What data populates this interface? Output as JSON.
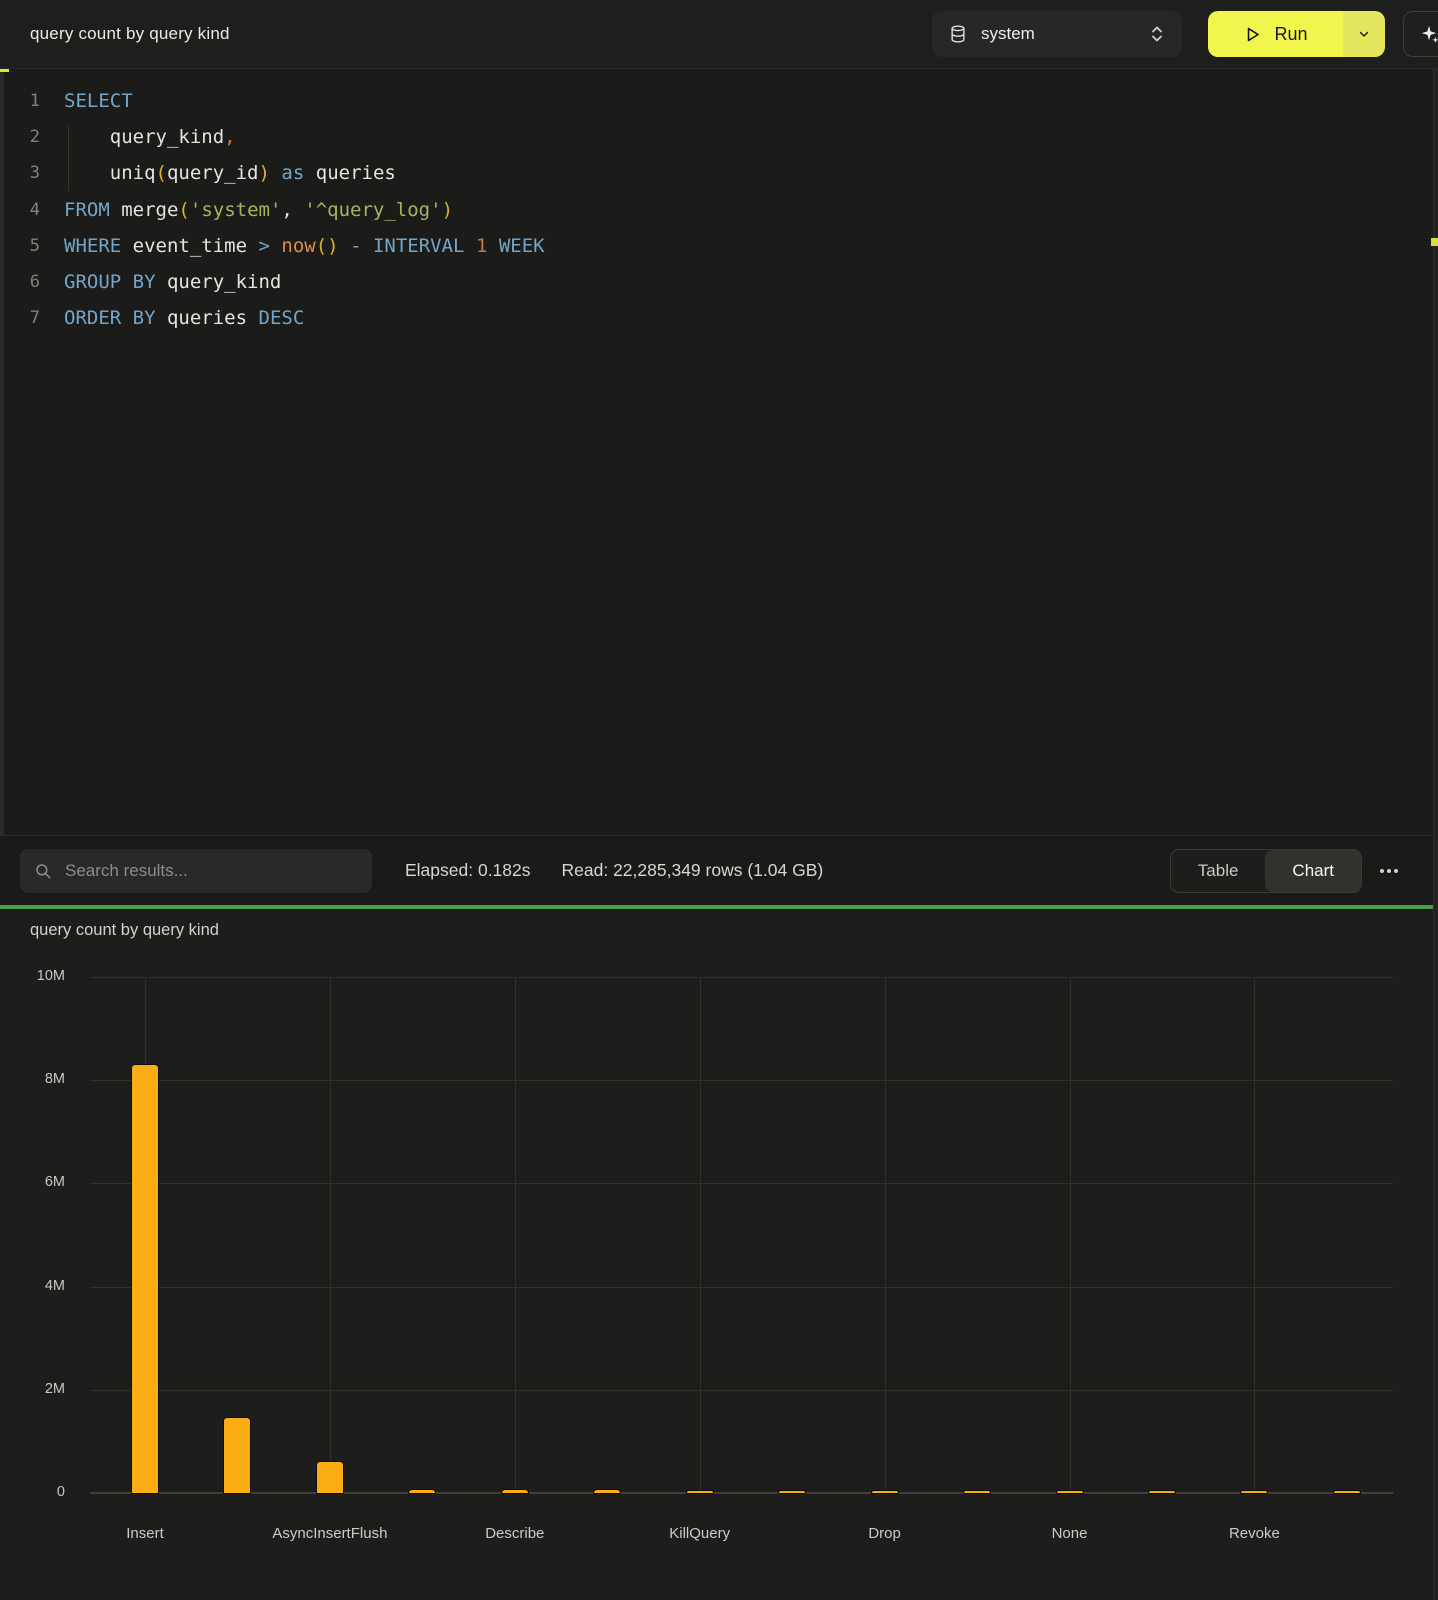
{
  "topbar": {
    "title": "query count by query kind",
    "database_selector": {
      "value": "system"
    },
    "run_button": {
      "label": "Run"
    }
  },
  "icons": {
    "database-icon": "db-cylinder",
    "unfold-icon": "chevron-up-down",
    "play-icon": "triangle-right-outline",
    "chevron-down-icon": "chevron-down",
    "sparkle-icon": "four-point-star",
    "search-icon": "magnifier",
    "ellipsis-icon": "three-dots"
  },
  "editor": {
    "lines": [
      {
        "num": 1,
        "tokens": [
          {
            "t": "SELECT",
            "c": "kw"
          }
        ]
      },
      {
        "num": 2,
        "tokens": [
          {
            "t": "    "
          },
          {
            "t": "query_kind",
            "c": "id"
          },
          {
            "t": ",",
            "c": "num"
          }
        ]
      },
      {
        "num": 3,
        "tokens": [
          {
            "t": "    "
          },
          {
            "t": "uniq",
            "c": "id"
          },
          {
            "t": "(",
            "c": "paren"
          },
          {
            "t": "query_id",
            "c": "id"
          },
          {
            "t": ")",
            "c": "paren"
          },
          {
            "t": " "
          },
          {
            "t": "as",
            "c": "kw"
          },
          {
            "t": " "
          },
          {
            "t": "queries",
            "c": "id"
          }
        ]
      },
      {
        "num": 4,
        "tokens": [
          {
            "t": "FROM",
            "c": "kw"
          },
          {
            "t": " "
          },
          {
            "t": "merge",
            "c": "id"
          },
          {
            "t": "(",
            "c": "paren"
          },
          {
            "t": "'system'",
            "c": "str"
          },
          {
            "t": ", ",
            "c": "id"
          },
          {
            "t": "'^query_log'",
            "c": "str"
          },
          {
            "t": ")",
            "c": "paren"
          }
        ]
      },
      {
        "num": 5,
        "tokens": [
          {
            "t": "WHERE",
            "c": "kw"
          },
          {
            "t": " "
          },
          {
            "t": "event_time",
            "c": "id"
          },
          {
            "t": " "
          },
          {
            "t": ">",
            "c": "kw"
          },
          {
            "t": " "
          },
          {
            "t": "now",
            "c": "fn"
          },
          {
            "t": "()",
            "c": "paren"
          },
          {
            "t": " "
          },
          {
            "t": "-",
            "c": "kw"
          },
          {
            "t": " "
          },
          {
            "t": "INTERVAL",
            "c": "kw"
          },
          {
            "t": " "
          },
          {
            "t": "1",
            "c": "num"
          },
          {
            "t": " "
          },
          {
            "t": "WEEK",
            "c": "kw"
          }
        ]
      },
      {
        "num": 6,
        "tokens": [
          {
            "t": "GROUP BY",
            "c": "kw"
          },
          {
            "t": " "
          },
          {
            "t": "query_kind",
            "c": "id"
          }
        ]
      },
      {
        "num": 7,
        "tokens": [
          {
            "t": "ORDER BY",
            "c": "kw"
          },
          {
            "t": " "
          },
          {
            "t": "queries",
            "c": "id"
          },
          {
            "t": " "
          },
          {
            "t": "DESC",
            "c": "kw"
          }
        ]
      }
    ]
  },
  "results_toolbar": {
    "search_placeholder": "Search results...",
    "elapsed": "Elapsed: 0.182s",
    "read": "Read: 22,285,349 rows (1.04 GB)",
    "view_toggle": {
      "options": [
        "Table",
        "Chart"
      ],
      "selected": "Chart"
    }
  },
  "chart_data": {
    "type": "bar",
    "title": "query count by query kind",
    "categories": [
      "Insert",
      "",
      "AsyncInsertFlush",
      "",
      "Describe",
      "",
      "KillQuery",
      "",
      "Drop",
      "",
      "None",
      "",
      "Revoke",
      ""
    ],
    "values": [
      8300000,
      1450000,
      600000,
      60000,
      55000,
      50000,
      48000,
      45000,
      42000,
      40000,
      38000,
      35000,
      32000,
      30000
    ],
    "xlabel": "",
    "ylabel": "",
    "ylim": [
      0,
      10000000
    ],
    "ytick_labels": [
      "0",
      "2M",
      "4M",
      "6M",
      "8M",
      "10M"
    ],
    "x_label_interval": 2,
    "bar_color": "#fcac14",
    "grid": true,
    "legend_position": "none"
  },
  "colors": {
    "accent_run": "#f2f64c",
    "splitter_green": "#4a9e4b",
    "bar": "#fcac14",
    "syntax": {
      "kw": "#74a6c8",
      "id": "#e6e4e0",
      "paren": "#d8b233",
      "str": "#a9b45f",
      "fn": "#dc9046",
      "num": "#cd7745"
    }
  }
}
